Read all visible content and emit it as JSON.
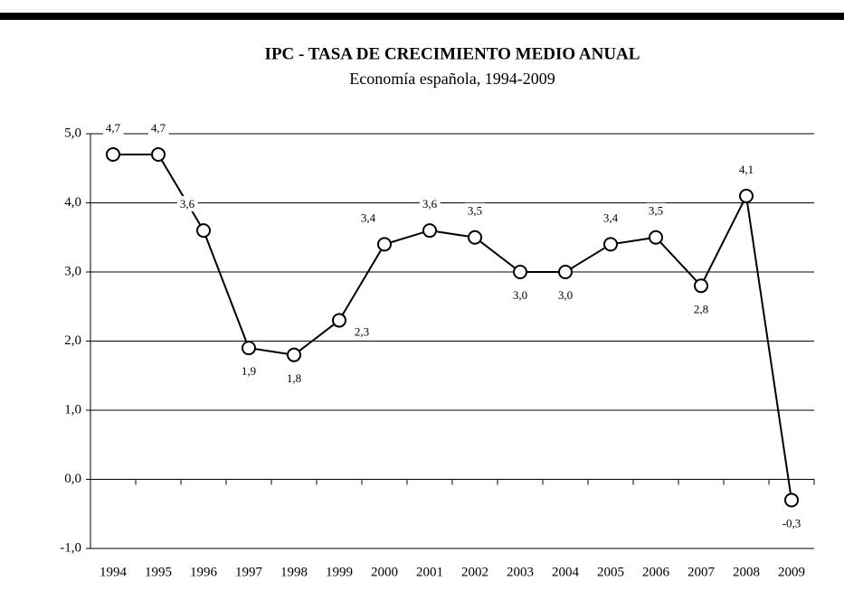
{
  "chart_data": {
    "type": "line",
    "title": "IPC - TASA DE CRECIMIENTO MEDIO ANUAL",
    "subtitle": "Economía española, 1994-2009",
    "categories": [
      "1994",
      "1995",
      "1996",
      "1997",
      "1998",
      "1999",
      "2000",
      "2001",
      "2002",
      "2003",
      "2004",
      "2005",
      "2006",
      "2007",
      "2008",
      "2009"
    ],
    "series": [
      {
        "name": "IPC",
        "color": "#000000",
        "values": [
          4.7,
          4.7,
          3.6,
          1.9,
          1.8,
          2.3,
          3.4,
          3.6,
          3.5,
          3.0,
          3.0,
          3.4,
          3.5,
          2.8,
          4.1,
          -0.3
        ],
        "value_labels": [
          "4,7",
          "4,7",
          "3,6",
          "1,9",
          "1,8",
          "2,3",
          "3,4",
          "3,6",
          "3,5",
          "3,0",
          "3,0",
          "3,4",
          "3,5",
          "2,8",
          "4,1",
          "-0,3"
        ]
      }
    ],
    "ylim": [
      -1,
      5
    ],
    "yticks": [
      {
        "value": -1,
        "label": "-1,0"
      },
      {
        "value": 0,
        "label": "0,0"
      },
      {
        "value": 1,
        "label": "1,0"
      },
      {
        "value": 2,
        "label": "2,0"
      },
      {
        "value": 3,
        "label": "3,0"
      },
      {
        "value": 4,
        "label": "4,0"
      },
      {
        "value": 5,
        "label": "5,0"
      }
    ],
    "grid": true
  }
}
